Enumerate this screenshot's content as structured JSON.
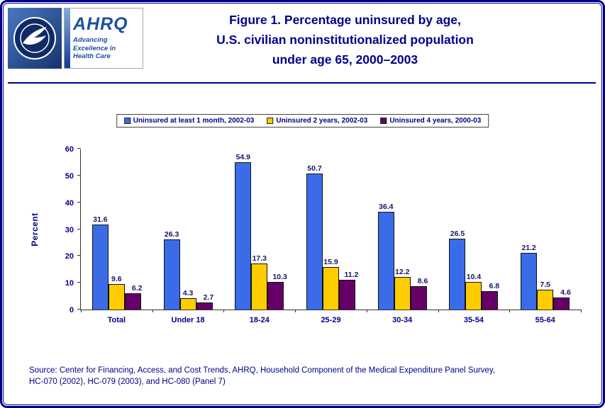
{
  "header": {
    "ahrq_logo_text": "AHRQ",
    "ahrq_tagline_line1": "Advancing",
    "ahrq_tagline_line2": "Excellence in",
    "ahrq_tagline_line3": "Health Care",
    "title_line1": "Figure 1. Percentage uninsured by age,",
    "title_line2": "U.S. civilian noninstitutionalized population",
    "title_line3": "under age 65, 2000–2003"
  },
  "chart_data": {
    "type": "bar",
    "title": "Figure 1. Percentage uninsured by age, U.S. civilian noninstitutionalized population under age 65, 2000–2003",
    "categories": [
      "Total",
      "Under 18",
      "18-24",
      "25-29",
      "30-34",
      "35-54",
      "55-64"
    ],
    "series": [
      {
        "name": "Uninsured at least 1 month, 2002-03",
        "color": "#3B6CE8",
        "values": [
          31.6,
          26.3,
          54.9,
          50.7,
          36.4,
          26.5,
          21.2
        ]
      },
      {
        "name": "Uninsured 2 years, 2002-03",
        "color": "#FFCC00",
        "values": [
          9.6,
          4.3,
          17.3,
          15.9,
          12.2,
          10.4,
          7.5
        ]
      },
      {
        "name": "Uninsured 4 years, 2000-03",
        "color": "#660066",
        "values": [
          6.2,
          2.7,
          10.3,
          11.2,
          8.6,
          6.8,
          4.6
        ]
      }
    ],
    "xlabel": "",
    "ylabel": "Percent",
    "ylim": [
      0,
      60
    ],
    "yticks": [
      0,
      10,
      20,
      30,
      40,
      50,
      60
    ],
    "grid": false,
    "legend_position": "top"
  },
  "footer": {
    "source_line1": "Source: Center for Financing, Access, and Cost Trends, AHRQ, Household Component of the Medical Expenditure Panel Survey,",
    "source_line2": "HC-070 (2002), HC-079 (2003), and HC-080 (Panel 7)"
  }
}
